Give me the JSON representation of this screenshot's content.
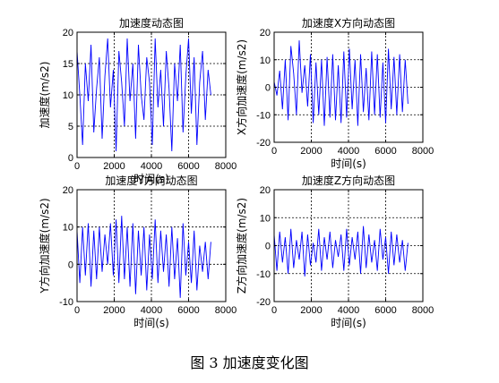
{
  "figure_caption": "图 3  加速度变化图",
  "chart_data": [
    {
      "type": "line",
      "title": "加速度动态图",
      "xlabel": "时间(s)",
      "ylabel": "加速度(m/s2)",
      "xlim": [
        0,
        8000
      ],
      "ylim": [
        0,
        20
      ],
      "xticks": [
        "0",
        "2000",
        "4000",
        "6000",
        "8000"
      ],
      "yticks": [
        "0",
        "5",
        "10",
        "15",
        "20"
      ],
      "grid": true,
      "series": [
        {
          "color": "#0000ff",
          "x": [
            0,
            150,
            300,
            450,
            600,
            750,
            900,
            1050,
            1200,
            1350,
            1500,
            1650,
            1800,
            1950,
            2100,
            2250,
            2400,
            2550,
            2700,
            2850,
            3000,
            3150,
            3300,
            3450,
            3600,
            3750,
            3900,
            4050,
            4200,
            4350,
            4500,
            4650,
            4800,
            4950,
            5100,
            5250,
            5400,
            5550,
            5700,
            5850,
            6000,
            6150,
            6300,
            6450,
            6600,
            6750,
            6900,
            7050,
            7200
          ],
          "y": [
            17,
            10,
            2,
            15,
            9,
            18,
            4,
            11,
            16,
            3,
            13,
            19,
            8,
            14,
            1,
            17,
            12,
            5,
            19,
            9,
            15,
            3,
            18,
            10,
            6,
            16,
            12,
            2,
            19,
            8,
            14,
            5,
            17,
            11,
            1,
            15,
            9,
            18,
            4,
            13,
            19,
            7,
            16,
            2,
            12,
            17,
            6,
            14,
            10
          ]
        }
      ]
    },
    {
      "type": "line",
      "title": "加速度X方向动态图",
      "xlabel": "时间(s)",
      "ylabel": "X方向加速度(m/s2)",
      "xlim": [
        0,
        8000
      ],
      "ylim": [
        -20,
        20
      ],
      "xticks": [
        "0",
        "2000",
        "4000",
        "6000",
        "8000"
      ],
      "yticks": [
        "-20",
        "-10",
        "0",
        "10",
        "20"
      ],
      "grid": true,
      "series": [
        {
          "color": "#0000ff",
          "x": [
            0,
            150,
            300,
            450,
            600,
            750,
            900,
            1050,
            1200,
            1350,
            1500,
            1650,
            1800,
            1950,
            2100,
            2250,
            2400,
            2550,
            2700,
            2850,
            3000,
            3150,
            3300,
            3450,
            3600,
            3750,
            3900,
            4050,
            4200,
            4350,
            4500,
            4650,
            4800,
            4950,
            5100,
            5250,
            5400,
            5550,
            5700,
            5850,
            6000,
            6150,
            6300,
            6450,
            6600,
            6750,
            6900,
            7050,
            7200
          ],
          "y": [
            2,
            -3,
            6,
            -8,
            10,
            -12,
            15,
            5,
            -10,
            17,
            -2,
            8,
            -7,
            12,
            -13,
            9,
            -10,
            10,
            -14,
            11,
            -11,
            12,
            -12,
            8,
            -13,
            13,
            -11,
            14,
            -8,
            10,
            -14,
            12,
            -9,
            7,
            -12,
            13,
            -10,
            12,
            -11,
            9,
            -13,
            14,
            -8,
            11,
            -10,
            12,
            -9,
            10,
            -6
          ]
        }
      ]
    },
    {
      "type": "line",
      "title": "加速度Y方向动态图",
      "xlabel": "时间(s)",
      "ylabel": "Y方向加速度(m/s2)",
      "xlim": [
        0,
        8000
      ],
      "ylim": [
        -10,
        20
      ],
      "xticks": [
        "0",
        "2000",
        "4000",
        "6000",
        "8000"
      ],
      "yticks": [
        "-10",
        "0",
        "10",
        "20"
      ],
      "grid": true,
      "series": [
        {
          "color": "#0000ff",
          "x": [
            0,
            150,
            300,
            450,
            600,
            750,
            900,
            1050,
            1200,
            1350,
            1500,
            1650,
            1800,
            1950,
            2100,
            2250,
            2400,
            2550,
            2700,
            2850,
            3000,
            3150,
            3300,
            3450,
            3600,
            3750,
            3900,
            4050,
            4200,
            4350,
            4500,
            4650,
            4800,
            4950,
            5100,
            5250,
            5400,
            5550,
            5700,
            5850,
            6000,
            6150,
            6300,
            6450,
            6600,
            6750,
            6900,
            7050,
            7200
          ],
          "y": [
            9,
            -5,
            10,
            -3,
            11,
            -6,
            9,
            -4,
            10,
            -2,
            8,
            0,
            11,
            -3,
            12,
            -5,
            13,
            -4,
            10,
            -6,
            11,
            -8,
            9,
            -3,
            10,
            -7,
            8,
            -4,
            12,
            -5,
            9,
            -2,
            8,
            -6,
            10,
            -4,
            7,
            -9,
            11,
            -3,
            6,
            -5,
            9,
            -7,
            5,
            -2,
            6,
            -4,
            6
          ]
        }
      ]
    },
    {
      "type": "line",
      "title": "加速度Z方向动态图",
      "xlabel": "时间(s)",
      "ylabel": "Z方向加速度(m/s2)",
      "xlim": [
        0,
        8000
      ],
      "ylim": [
        -20,
        20
      ],
      "xticks": [
        "0",
        "2000",
        "4000",
        "6000",
        "8000"
      ],
      "yticks": [
        "-20",
        "-10",
        "0",
        "10",
        "20"
      ],
      "grid": true,
      "series": [
        {
          "color": "#0000ff",
          "x": [
            0,
            150,
            300,
            450,
            600,
            750,
            900,
            1050,
            1200,
            1350,
            1500,
            1650,
            1800,
            1950,
            2100,
            2250,
            2400,
            2550,
            2700,
            2850,
            3000,
            3150,
            3300,
            3450,
            3600,
            3750,
            3900,
            4050,
            4200,
            4350,
            4500,
            4650,
            4800,
            4950,
            5100,
            5250,
            5400,
            5550,
            5700,
            5850,
            6000,
            6150,
            6300,
            6450,
            6600,
            6750,
            6900,
            7050,
            7200
          ],
          "y": [
            4,
            -9,
            5,
            -6,
            3,
            -10,
            6,
            -8,
            2,
            -5,
            5,
            -11,
            4,
            -7,
            1,
            -6,
            6,
            -9,
            3,
            -5,
            5,
            -8,
            2,
            -4,
            4,
            -9,
            6,
            -7,
            3,
            -5,
            5,
            -10,
            7,
            -8,
            4,
            -6,
            2,
            -9,
            6,
            -5,
            3,
            -10,
            5,
            -7,
            4,
            -6,
            2,
            -9,
            1
          ]
        }
      ]
    }
  ]
}
